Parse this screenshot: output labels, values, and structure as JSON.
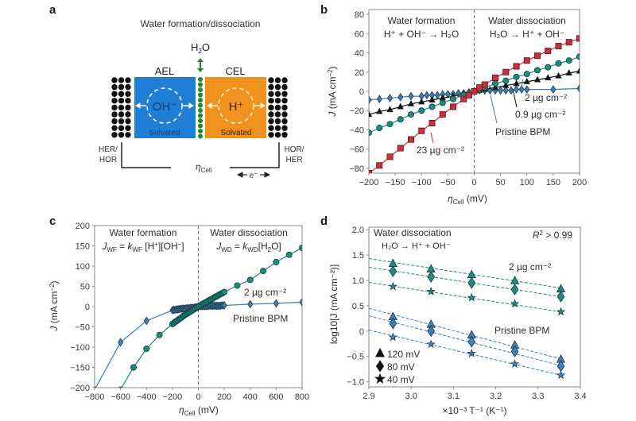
{
  "panel_a": {
    "label": "a",
    "title": "Water formation/dissociation",
    "h2o": "H2O",
    "ael": "AEL",
    "cel": "CEL",
    "oh_ion": "OH⁻",
    "h_ion": "H⁺",
    "solvated": "Solvated",
    "left_electrode_line1": "HER/",
    "left_electrode_line2": "HOR",
    "right_electrode_line1": "HOR/",
    "right_electrode_line2": "HER",
    "eta_cell": "η",
    "eta_sub": "Cell",
    "electron": "e⁻",
    "colors": {
      "ael": "#1f7fd6",
      "cel": "#f0921e",
      "interface": "#1f8a2a",
      "electrode": "#111111"
    }
  },
  "chart_data": [
    {
      "id": "b",
      "type": "line",
      "panel_label": "b",
      "title": "",
      "xlabel": "ηCell (mV)",
      "ylabel": "J (mA cm⁻²)",
      "xlim": [
        -200,
        200
      ],
      "ylim": [
        -85,
        85
      ],
      "xticks": [
        -200,
        -150,
        -100,
        -50,
        0,
        50,
        100,
        150,
        200
      ],
      "yticks": [
        -80,
        -60,
        -40,
        -20,
        0,
        20,
        40,
        60,
        80
      ],
      "grid": false,
      "vline_at": 0,
      "annotations": [
        {
          "text": "Water formation",
          "region": "left"
        },
        {
          "text": "H⁺ + OH⁻ → H₂O",
          "region": "left"
        },
        {
          "text": "Water dissociation",
          "region": "right"
        },
        {
          "text": "H₂O → H⁺ + OH⁻",
          "region": "right"
        }
      ],
      "series": [
        {
          "name": "23 µg cm⁻²",
          "marker": "square",
          "color": "#c9323a",
          "x": [
            -200,
            -180,
            -160,
            -140,
            -120,
            -100,
            -80,
            -60,
            -40,
            -20,
            -10,
            0,
            10,
            20,
            40,
            60,
            80,
            100,
            120,
            140,
            160,
            180,
            200
          ],
          "y": [
            -85,
            -77,
            -68,
            -59,
            -50,
            -41,
            -33,
            -24,
            -16,
            -8,
            -4,
            0,
            4,
            7,
            14,
            20,
            26,
            32,
            37,
            42,
            47,
            51,
            55
          ]
        },
        {
          "name": "2 µg cm⁻²",
          "marker": "circle",
          "color": "#1f8a80",
          "x": [
            -200,
            -180,
            -160,
            -140,
            -120,
            -100,
            -80,
            -60,
            -40,
            -20,
            -10,
            0,
            10,
            20,
            40,
            60,
            80,
            100,
            120,
            140,
            160,
            180,
            200
          ],
          "y": [
            -43,
            -38,
            -34,
            -29,
            -24,
            -20,
            -16,
            -12,
            -8,
            -4,
            -2,
            0,
            2,
            4,
            8,
            11,
            15,
            18,
            22,
            25,
            29,
            32,
            36
          ]
        },
        {
          "name": "0.9 µg cm⁻²",
          "marker": "triangle",
          "color": "#111111",
          "x": [
            -200,
            -180,
            -160,
            -140,
            -120,
            -100,
            -80,
            -60,
            -40,
            -20,
            -10,
            0,
            10,
            20,
            40,
            60,
            80,
            100,
            120,
            140,
            160,
            180,
            200
          ],
          "y": [
            -24,
            -21,
            -19,
            -16,
            -13,
            -11,
            -9,
            -7,
            -5,
            -3,
            -1,
            0,
            1,
            2,
            4,
            6,
            8,
            10,
            12,
            14,
            16,
            19,
            21
          ]
        },
        {
          "name": "Pristine BPM",
          "marker": "diamond",
          "color": "#3d7fb8",
          "x": [
            -200,
            -180,
            -160,
            -140,
            -120,
            -100,
            -90,
            -80,
            -70,
            -60,
            -50,
            -40,
            -30,
            -20,
            -10,
            0,
            10,
            20,
            30,
            40,
            50,
            60,
            70,
            80,
            90,
            100,
            150,
            200
          ],
          "y": [
            -9,
            -8,
            -7,
            -6,
            -5,
            -5,
            -4,
            -4,
            -4,
            -3,
            -3,
            -3,
            -2,
            -2,
            -1,
            0,
            1,
            1,
            1,
            1,
            1,
            1,
            1,
            2,
            2,
            2,
            2,
            3
          ]
        }
      ],
      "legend_labels": [
        {
          "text": "23 µg cm⁻²",
          "series": "23 µg cm⁻²"
        },
        {
          "text": "2 µg cm⁻²",
          "series": "2 µg cm⁻²"
        },
        {
          "text": "0.9 µg cm⁻²",
          "series": "0.9 µg cm⁻²"
        },
        {
          "text": "Pristine BPM",
          "series": "Pristine BPM"
        }
      ]
    },
    {
      "id": "c",
      "type": "line",
      "panel_label": "c",
      "title": "",
      "xlabel": "ηCell (mV)",
      "ylabel": "J (mA cm⁻²)",
      "xlim": [
        -800,
        800
      ],
      "ylim": [
        -200,
        200
      ],
      "xticks": [
        -800,
        -600,
        -400,
        -200,
        0,
        200,
        400,
        600,
        800
      ],
      "yticks": [
        -200,
        -150,
        -100,
        -50,
        0,
        50,
        100,
        150,
        200
      ],
      "grid": false,
      "vline_at": 0,
      "annotations": [
        {
          "text": "Water formation",
          "region": "left"
        },
        {
          "text": "JWF = kWF [H⁺][OH⁻]",
          "region": "left"
        },
        {
          "text": "Water dissociation",
          "region": "right"
        },
        {
          "text": "JWD = kWD[H₂O]",
          "region": "right"
        }
      ],
      "series": [
        {
          "name": "2 µg cm⁻²",
          "marker": "circle",
          "color": "#1f8a80",
          "x": [
            -600,
            -500,
            -400,
            -300,
            -200,
            -190,
            -180,
            -170,
            -160,
            -150,
            -140,
            -130,
            -120,
            -110,
            -100,
            -90,
            -80,
            -70,
            -60,
            -50,
            -40,
            -30,
            -20,
            -10,
            0,
            10,
            20,
            30,
            40,
            50,
            60,
            70,
            80,
            90,
            100,
            110,
            120,
            130,
            140,
            150,
            160,
            170,
            180,
            190,
            200,
            300,
            400,
            500,
            600,
            700,
            800
          ],
          "y": [
            -205,
            -150,
            -104,
            -70,
            -43,
            -41,
            -38,
            -36,
            -34,
            -31,
            -29,
            -27,
            -24,
            -22,
            -20,
            -18,
            -16,
            -14,
            -12,
            -10,
            -8,
            -6,
            -4,
            -2,
            0,
            2,
            4,
            6,
            8,
            9,
            11,
            13,
            15,
            17,
            18,
            20,
            22,
            24,
            25,
            27,
            29,
            31,
            32,
            34,
            36,
            52,
            66,
            88,
            110,
            128,
            145
          ]
        },
        {
          "name": "Pristine BPM",
          "marker": "diamond",
          "color": "#3d7fb8",
          "x": [
            -800,
            -600,
            -400,
            -200,
            -190,
            -180,
            -170,
            -160,
            -150,
            -140,
            -130,
            -120,
            -110,
            -100,
            -90,
            -80,
            -70,
            -60,
            -50,
            -40,
            -30,
            -20,
            -10,
            0,
            10,
            20,
            30,
            40,
            50,
            60,
            70,
            80,
            90,
            100,
            110,
            120,
            130,
            140,
            150,
            160,
            170,
            180,
            190,
            200,
            400,
            600,
            800
          ],
          "y": [
            -205,
            -88,
            -35,
            -9,
            -8,
            -8,
            -7,
            -7,
            -6,
            -6,
            -5,
            -5,
            -5,
            -5,
            -4,
            -4,
            -4,
            -3,
            -3,
            -3,
            -2,
            -2,
            -1,
            0,
            1,
            1,
            1,
            1,
            1,
            1,
            1,
            2,
            2,
            2,
            2,
            2,
            2,
            2,
            2,
            2,
            2,
            3,
            3,
            3,
            6,
            8,
            11
          ]
        }
      ],
      "legend_labels": [
        {
          "text": "2 µg cm⁻²",
          "series": "2 µg cm⁻²"
        },
        {
          "text": "Pristine BPM",
          "series": "Pristine BPM"
        }
      ]
    },
    {
      "id": "d",
      "type": "scatter",
      "panel_label": "d",
      "title": "",
      "xlabel": "×10⁻³ T⁻¹ (K⁻¹)",
      "ylabel": "log10[J (mA cm⁻²)]",
      "xlim": [
        2.9,
        3.4
      ],
      "ylim": [
        -1.1,
        2.05
      ],
      "xticks": [
        2.9,
        3.0,
        3.1,
        3.2,
        3.3,
        3.4
      ],
      "yticks": [
        -1.0,
        -0.5,
        0,
        0.5,
        1.0,
        1.5,
        2.0
      ],
      "xtick_labels": [
        "2.9",
        "3.0",
        "3.1",
        "3.2",
        "3.3",
        "3.4"
      ],
      "ytick_labels": [
        "−1.0",
        "−0.5",
        "0",
        "0.5",
        "1.0",
        "1.5",
        "2.0"
      ],
      "grid": false,
      "annotations": [
        {
          "text": "Water dissociation"
        },
        {
          "text": "H₂O → H⁺ + OH⁻"
        },
        {
          "text": "R² > 0.99"
        },
        {
          "text": "2 µg cm⁻²"
        },
        {
          "text": "Pristine BPM"
        }
      ],
      "x": [
        2.957,
        3.047,
        3.143,
        3.245,
        3.354
      ],
      "series": [
        {
          "name": "2 µg cm⁻² · 120 mV",
          "group": "2 µg cm⁻²",
          "marker": "triangle",
          "color": "#1f8a80",
          "y": [
            1.33,
            1.22,
            1.11,
            0.99,
            0.83
          ],
          "fit": [
            1.43,
            0.85
          ]
        },
        {
          "name": "2 µg cm⁻² · 80 mV",
          "group": "2 µg cm⁻²",
          "marker": "diamond",
          "color": "#1f8a80",
          "y": [
            1.18,
            1.07,
            0.95,
            0.82,
            0.68
          ],
          "fit": [
            1.26,
            0.68
          ]
        },
        {
          "name": "2 µg cm⁻² · 40 mV",
          "group": "2 µg cm⁻²",
          "marker": "star",
          "color": "#1f8a80",
          "y": [
            0.88,
            0.78,
            0.66,
            0.54,
            0.38
          ],
          "fit": [
            0.96,
            0.38
          ]
        },
        {
          "name": "Pristine BPM · 120 mV",
          "group": "Pristine BPM",
          "marker": "triangle",
          "color": "#3d7fb8",
          "y": [
            0.28,
            0.13,
            -0.08,
            -0.28,
            -0.56
          ],
          "fit": [
            0.45,
            -0.55
          ]
        },
        {
          "name": "Pristine BPM · 80 mV",
          "group": "Pristine BPM",
          "marker": "diamond",
          "color": "#3d7fb8",
          "y": [
            0.15,
            0.0,
            -0.21,
            -0.4,
            -0.69
          ],
          "fit": [
            0.3,
            -0.68
          ]
        },
        {
          "name": "Pristine BPM · 40 mV",
          "group": "Pristine BPM",
          "marker": "star",
          "color": "#3d7fb8",
          "y": [
            -0.12,
            -0.26,
            -0.44,
            -0.65,
            -0.87
          ],
          "fit": [
            0.02,
            -0.87
          ]
        }
      ],
      "legend": [
        {
          "marker": "triangle",
          "label": "120 mV"
        },
        {
          "marker": "diamond",
          "label": "80 mV"
        },
        {
          "marker": "star",
          "label": "40 mV"
        }
      ],
      "legend_position": "bottom-left"
    }
  ]
}
